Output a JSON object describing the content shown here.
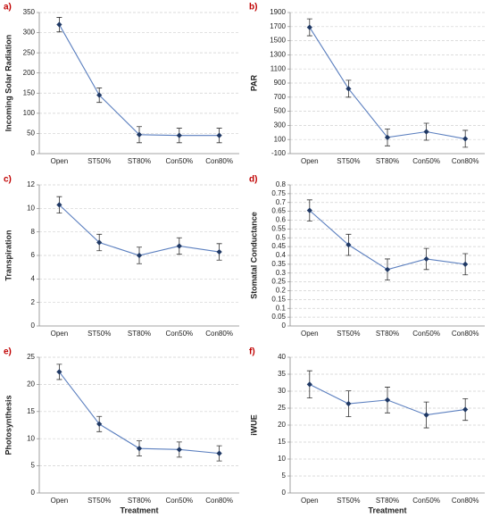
{
  "chart_data": [
    {
      "type": "line",
      "panel_label": "a)",
      "ylabel": "Incoming Solar Radiation",
      "categories": [
        "Open",
        "ST50%",
        "ST80%",
        "Con50%",
        "Con80%"
      ],
      "values": [
        320,
        145,
        47,
        45,
        45
      ],
      "errors": [
        18,
        18,
        20,
        18,
        18
      ],
      "ylim": [
        0,
        350
      ],
      "yticks": [
        0,
        50,
        100,
        150,
        200,
        250,
        300,
        350
      ],
      "grid": true,
      "color": "#5b7fbf",
      "marker_color": "#1f3864"
    },
    {
      "type": "line",
      "panel_label": "b)",
      "ylabel": "PAR",
      "categories": [
        "Open",
        "ST50%",
        "ST80%",
        "Con50%",
        "Con80%"
      ],
      "values": [
        1690,
        820,
        130,
        210,
        110
      ],
      "errors": [
        120,
        120,
        120,
        120,
        120
      ],
      "ylim": [
        -100,
        1900
      ],
      "yticks": [
        -100,
        100,
        300,
        500,
        700,
        900,
        1100,
        1300,
        1500,
        1700,
        1900
      ],
      "grid": true,
      "color": "#5b7fbf",
      "marker_color": "#1f3864"
    },
    {
      "type": "line",
      "panel_label": "c)",
      "ylabel": "Transpiration",
      "categories": [
        "Open",
        "ST50%",
        "ST80%",
        "Con50%",
        "Con80%"
      ],
      "values": [
        10.3,
        7.1,
        6.0,
        6.8,
        6.3
      ],
      "errors": [
        0.7,
        0.7,
        0.7,
        0.7,
        0.7
      ],
      "ylim": [
        0,
        12
      ],
      "yticks": [
        0,
        2,
        4,
        6,
        8,
        10,
        12
      ],
      "grid": true,
      "color": "#5b7fbf",
      "marker_color": "#1f3864"
    },
    {
      "type": "line",
      "panel_label": "d)",
      "ylabel": "Stomatal Conductance",
      "categories": [
        "Open",
        "ST50%",
        "ST80%",
        "Con50%",
        "Con80%"
      ],
      "values": [
        0.655,
        0.46,
        0.32,
        0.38,
        0.35
      ],
      "errors": [
        0.06,
        0.06,
        0.06,
        0.06,
        0.06
      ],
      "ylim": [
        0,
        0.8
      ],
      "yticks": [
        0,
        0.05,
        0.1,
        0.15,
        0.2,
        0.25,
        0.3,
        0.35,
        0.4,
        0.45,
        0.5,
        0.55,
        0.6,
        0.65,
        0.7,
        0.75,
        0.8
      ],
      "grid": true,
      "color": "#5b7fbf",
      "marker_color": "#1f3864"
    },
    {
      "type": "line",
      "panel_label": "e)",
      "ylabel": "Photosynthesis",
      "xlabel": "Treatment",
      "categories": [
        "Open",
        "ST50%",
        "ST80%",
        "Con50%",
        "Con80%"
      ],
      "values": [
        22.3,
        12.7,
        8.2,
        8.0,
        7.3
      ],
      "errors": [
        1.4,
        1.4,
        1.4,
        1.4,
        1.4
      ],
      "ylim": [
        0,
        25
      ],
      "yticks": [
        0,
        5,
        10,
        15,
        20,
        25
      ],
      "grid": true,
      "color": "#5b7fbf",
      "marker_color": "#1f3864"
    },
    {
      "type": "line",
      "panel_label": "f)",
      "ylabel": "iWUE",
      "xlabel": "Treatment",
      "categories": [
        "Open",
        "ST50%",
        "ST80%",
        "Con50%",
        "Con80%"
      ],
      "values": [
        32,
        26.3,
        27.4,
        23,
        24.6
      ],
      "errors": [
        4,
        3.8,
        3.8,
        3.8,
        3.2
      ],
      "ylim": [
        0,
        40
      ],
      "yticks": [
        0,
        5,
        10,
        15,
        20,
        25,
        30,
        35,
        40
      ],
      "grid": true,
      "color": "#5b7fbf",
      "marker_color": "#1f3864"
    }
  ]
}
